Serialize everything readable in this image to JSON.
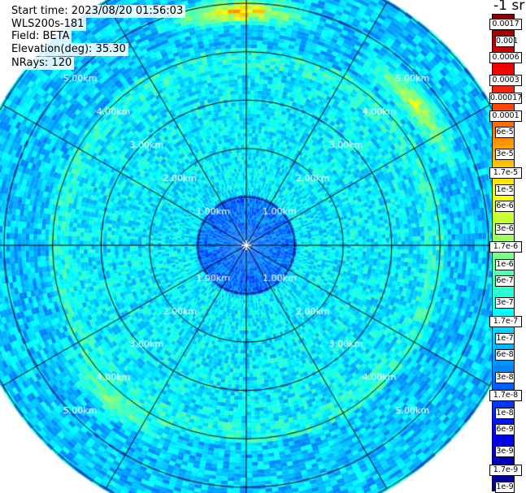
{
  "info": {
    "start_time": "Start time: 2023/08/20 01:56:03",
    "device": "WLS200s-181",
    "field": "Field: BETA",
    "elevation": "Elevation(deg): 35.30",
    "nrays": "NRays: 120"
  },
  "colorbar": {
    "title": "-1 sr",
    "labels": [
      "0.0017",
      "0.001",
      "0.0006",
      "0.0003",
      "0.00017",
      "0.0001",
      "6e-5",
      "3e-5",
      "1.7e-5",
      "1e-5",
      "6e-6",
      "3e-6",
      "1.7e-6",
      "1e-6",
      "6e-7",
      "3e-7",
      "1.7e-7",
      "1e-7",
      "6e-8",
      "3e-8",
      "1.7e-8",
      "1e-8",
      "6e-9",
      "3e-9",
      "1.7e-9",
      "1e-9"
    ]
  },
  "chart_data": {
    "type": "heatmap",
    "projection": "polar (PPI scan)",
    "field": "BETA",
    "rays": 120,
    "range_rings_km": [
      1,
      2,
      3,
      4,
      5
    ],
    "ring_labels": [
      "1.00km",
      "2.00km",
      "3.00km",
      "4.00km",
      "5.00km"
    ],
    "max_range_km": 5.8,
    "spokes_deg": [
      0,
      30,
      60,
      90,
      120,
      150,
      180,
      210,
      240,
      270,
      300,
      330
    ],
    "color_scale": "jet, log10 from 1e-9 to 0.0017",
    "value_bands": [
      {
        "range_km": [
          0,
          1.0
        ],
        "typical_value": "3e-8"
      },
      {
        "range_km": [
          1.0,
          3.7
        ],
        "typical_value": "1.7e-7"
      },
      {
        "range_km": [
          3.7,
          4.1
        ],
        "typical_value": "3e-7"
      },
      {
        "range_km": [
          4.1,
          5.8
        ],
        "typical_value": "1e-7"
      }
    ],
    "hotspots": [
      {
        "azimuth_deg": 358,
        "range_km": 4.8,
        "value": "6e-5"
      },
      {
        "azimuth_deg": 50,
        "range_km": 4.5,
        "value": "1e-5"
      },
      {
        "azimuth_deg": 220,
        "range_km": 4.2,
        "value": "3e-6"
      }
    ]
  }
}
